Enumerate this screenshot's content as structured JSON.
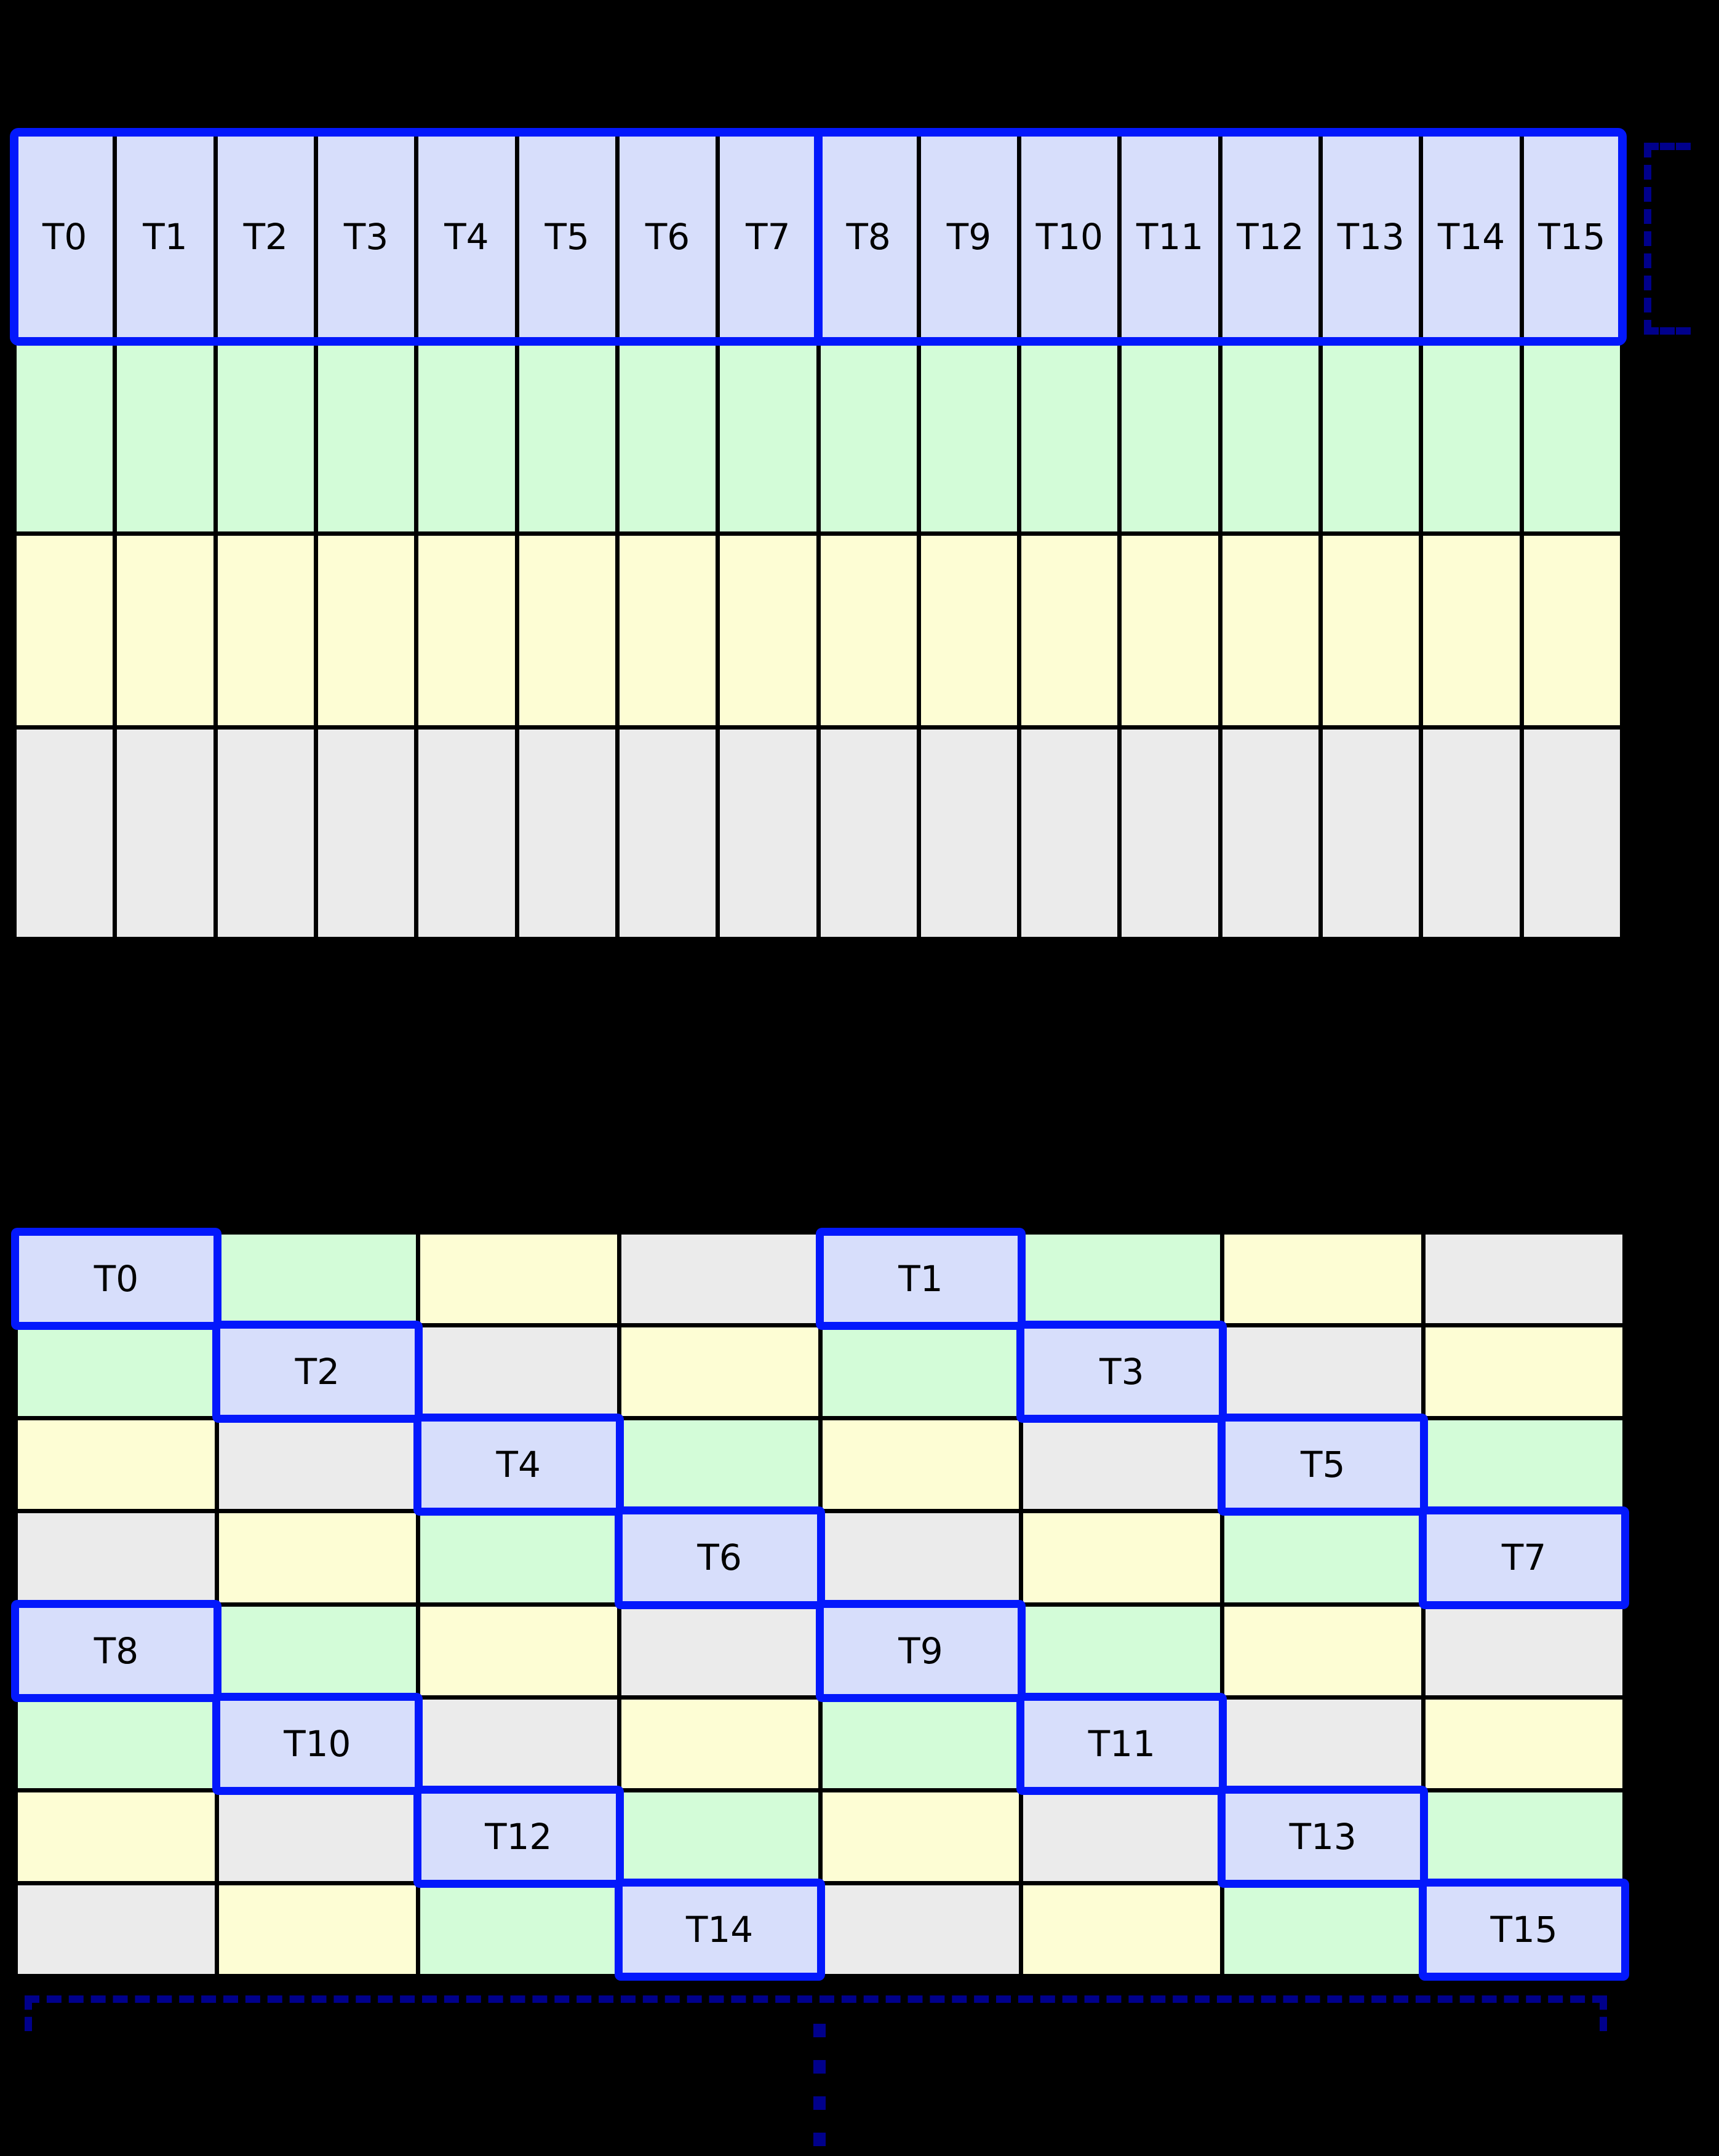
{
  "diagram": {
    "background": "#000000",
    "colors": {
      "thread": "#d7defb",
      "green": "#d3fcd8",
      "yellow": "#fdfdd4",
      "gray": "#ebebeb",
      "highlight_border": "#0318fc",
      "bracket": "#00008b",
      "grid_line": "#000000",
      "label_text": "#000000"
    },
    "top_grid": {
      "columns": 16,
      "warp_divider_after_column": 8,
      "rows": [
        {
          "color": "thread",
          "highlighted": true,
          "labels": [
            "T0",
            "T1",
            "T2",
            "T3",
            "T4",
            "T5",
            "T6",
            "T7",
            "T8",
            "T9",
            "T10",
            "T11",
            "T12",
            "T13",
            "T14",
            "T15"
          ]
        },
        {
          "color": "green",
          "labels": []
        },
        {
          "color": "yellow",
          "labels": []
        },
        {
          "color": "gray",
          "labels": []
        }
      ]
    },
    "bottom_grid": {
      "columns": 8,
      "rows": [
        [
          {
            "color": "thread",
            "label": "T0"
          },
          {
            "color": "green"
          },
          {
            "color": "yellow"
          },
          {
            "color": "gray"
          },
          {
            "color": "thread",
            "label": "T1"
          },
          {
            "color": "green"
          },
          {
            "color": "yellow"
          },
          {
            "color": "gray"
          }
        ],
        [
          {
            "color": "green"
          },
          {
            "color": "thread",
            "label": "T2"
          },
          {
            "color": "gray"
          },
          {
            "color": "yellow"
          },
          {
            "color": "green"
          },
          {
            "color": "thread",
            "label": "T3"
          },
          {
            "color": "gray"
          },
          {
            "color": "yellow"
          }
        ],
        [
          {
            "color": "yellow"
          },
          {
            "color": "gray"
          },
          {
            "color": "thread",
            "label": "T4"
          },
          {
            "color": "green"
          },
          {
            "color": "yellow"
          },
          {
            "color": "gray"
          },
          {
            "color": "thread",
            "label": "T5"
          },
          {
            "color": "green"
          }
        ],
        [
          {
            "color": "gray"
          },
          {
            "color": "yellow"
          },
          {
            "color": "green"
          },
          {
            "color": "thread",
            "label": "T6"
          },
          {
            "color": "gray"
          },
          {
            "color": "yellow"
          },
          {
            "color": "green"
          },
          {
            "color": "thread",
            "label": "T7"
          }
        ],
        [
          {
            "color": "thread",
            "label": "T8"
          },
          {
            "color": "green"
          },
          {
            "color": "yellow"
          },
          {
            "color": "gray"
          },
          {
            "color": "thread",
            "label": "T9"
          },
          {
            "color": "green"
          },
          {
            "color": "yellow"
          },
          {
            "color": "gray"
          }
        ],
        [
          {
            "color": "green"
          },
          {
            "color": "thread",
            "label": "T10"
          },
          {
            "color": "gray"
          },
          {
            "color": "yellow"
          },
          {
            "color": "green"
          },
          {
            "color": "thread",
            "label": "T11"
          },
          {
            "color": "gray"
          },
          {
            "color": "yellow"
          }
        ],
        [
          {
            "color": "yellow"
          },
          {
            "color": "gray"
          },
          {
            "color": "thread",
            "label": "T12"
          },
          {
            "color": "green"
          },
          {
            "color": "yellow"
          },
          {
            "color": "gray"
          },
          {
            "color": "thread",
            "label": "T13"
          },
          {
            "color": "green"
          }
        ],
        [
          {
            "color": "gray"
          },
          {
            "color": "yellow"
          },
          {
            "color": "green"
          },
          {
            "color": "thread",
            "label": "T14"
          },
          {
            "color": "gray"
          },
          {
            "color": "yellow"
          },
          {
            "color": "green"
          },
          {
            "color": "thread",
            "label": "T15"
          }
        ]
      ]
    },
    "annotations": {
      "row_bracket": {
        "style": "dashed",
        "side": "right-of-thread-row"
      },
      "next_segment_bracket": {
        "style": "dashed",
        "side": "below-bottom-grid"
      },
      "continuation_ellipsis_dots": 4
    }
  }
}
